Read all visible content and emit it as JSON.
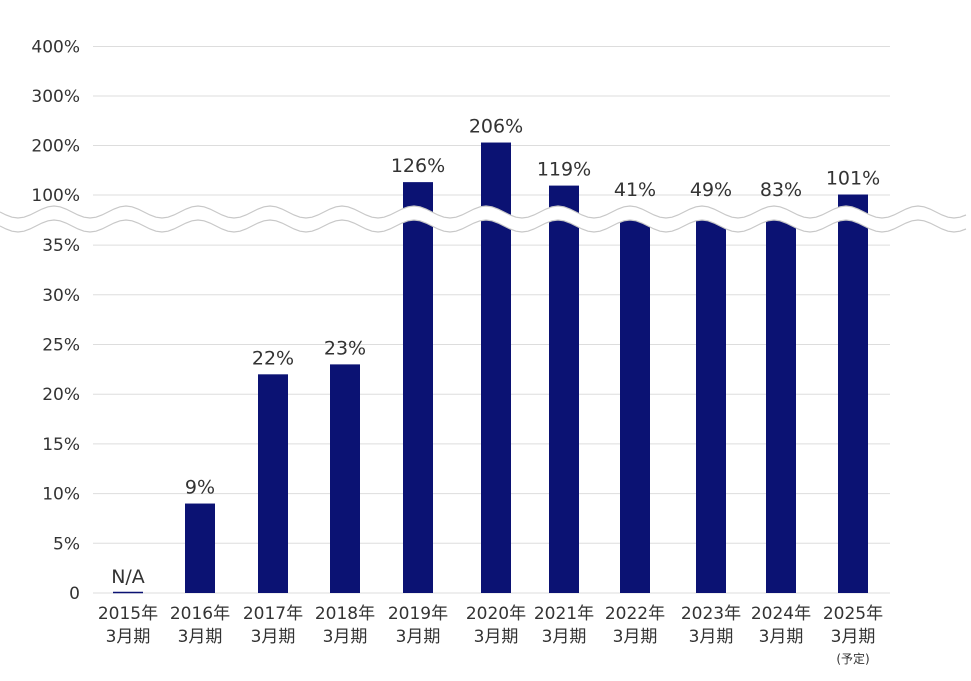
{
  "chart_data": {
    "type": "bar",
    "title": "",
    "xlabel": "",
    "ylabel": "",
    "grid": true,
    "legend": "none",
    "axis_break": {
      "lower_max": "35%",
      "upper_min": "100%"
    },
    "y_ticks_lower": [
      "0",
      "5%",
      "10%",
      "15%",
      "20%",
      "25%",
      "30%",
      "35%"
    ],
    "y_ticks_upper": [
      "100%",
      "200%",
      "300%",
      "400%"
    ],
    "categories": [
      {
        "year": "2015年",
        "period": "3月期",
        "note": ""
      },
      {
        "year": "2016年",
        "period": "3月期",
        "note": ""
      },
      {
        "year": "2017年",
        "period": "3月期",
        "note": ""
      },
      {
        "year": "2018年",
        "period": "3月期",
        "note": ""
      },
      {
        "year": "2019年",
        "period": "3月期",
        "note": ""
      },
      {
        "year": "2020年",
        "period": "3月期",
        "note": ""
      },
      {
        "year": "2021年",
        "period": "3月期",
        "note": ""
      },
      {
        "year": "2022年",
        "period": "3月期",
        "note": ""
      },
      {
        "year": "2023年",
        "period": "3月期",
        "note": ""
      },
      {
        "year": "2024年",
        "period": "3月期",
        "note": ""
      },
      {
        "year": "2025年",
        "period": "3月期",
        "note": "(予定)"
      }
    ],
    "values": [
      null,
      9,
      22,
      23,
      126,
      206,
      119,
      41,
      49,
      83,
      101
    ],
    "value_labels": [
      "N/A",
      "9%",
      "22%",
      "23%",
      "126%",
      "206%",
      "119%",
      "41%",
      "49%",
      "83%",
      "101%"
    ],
    "bar_color": "#0b1273",
    "grid_color": "#dddddd"
  }
}
